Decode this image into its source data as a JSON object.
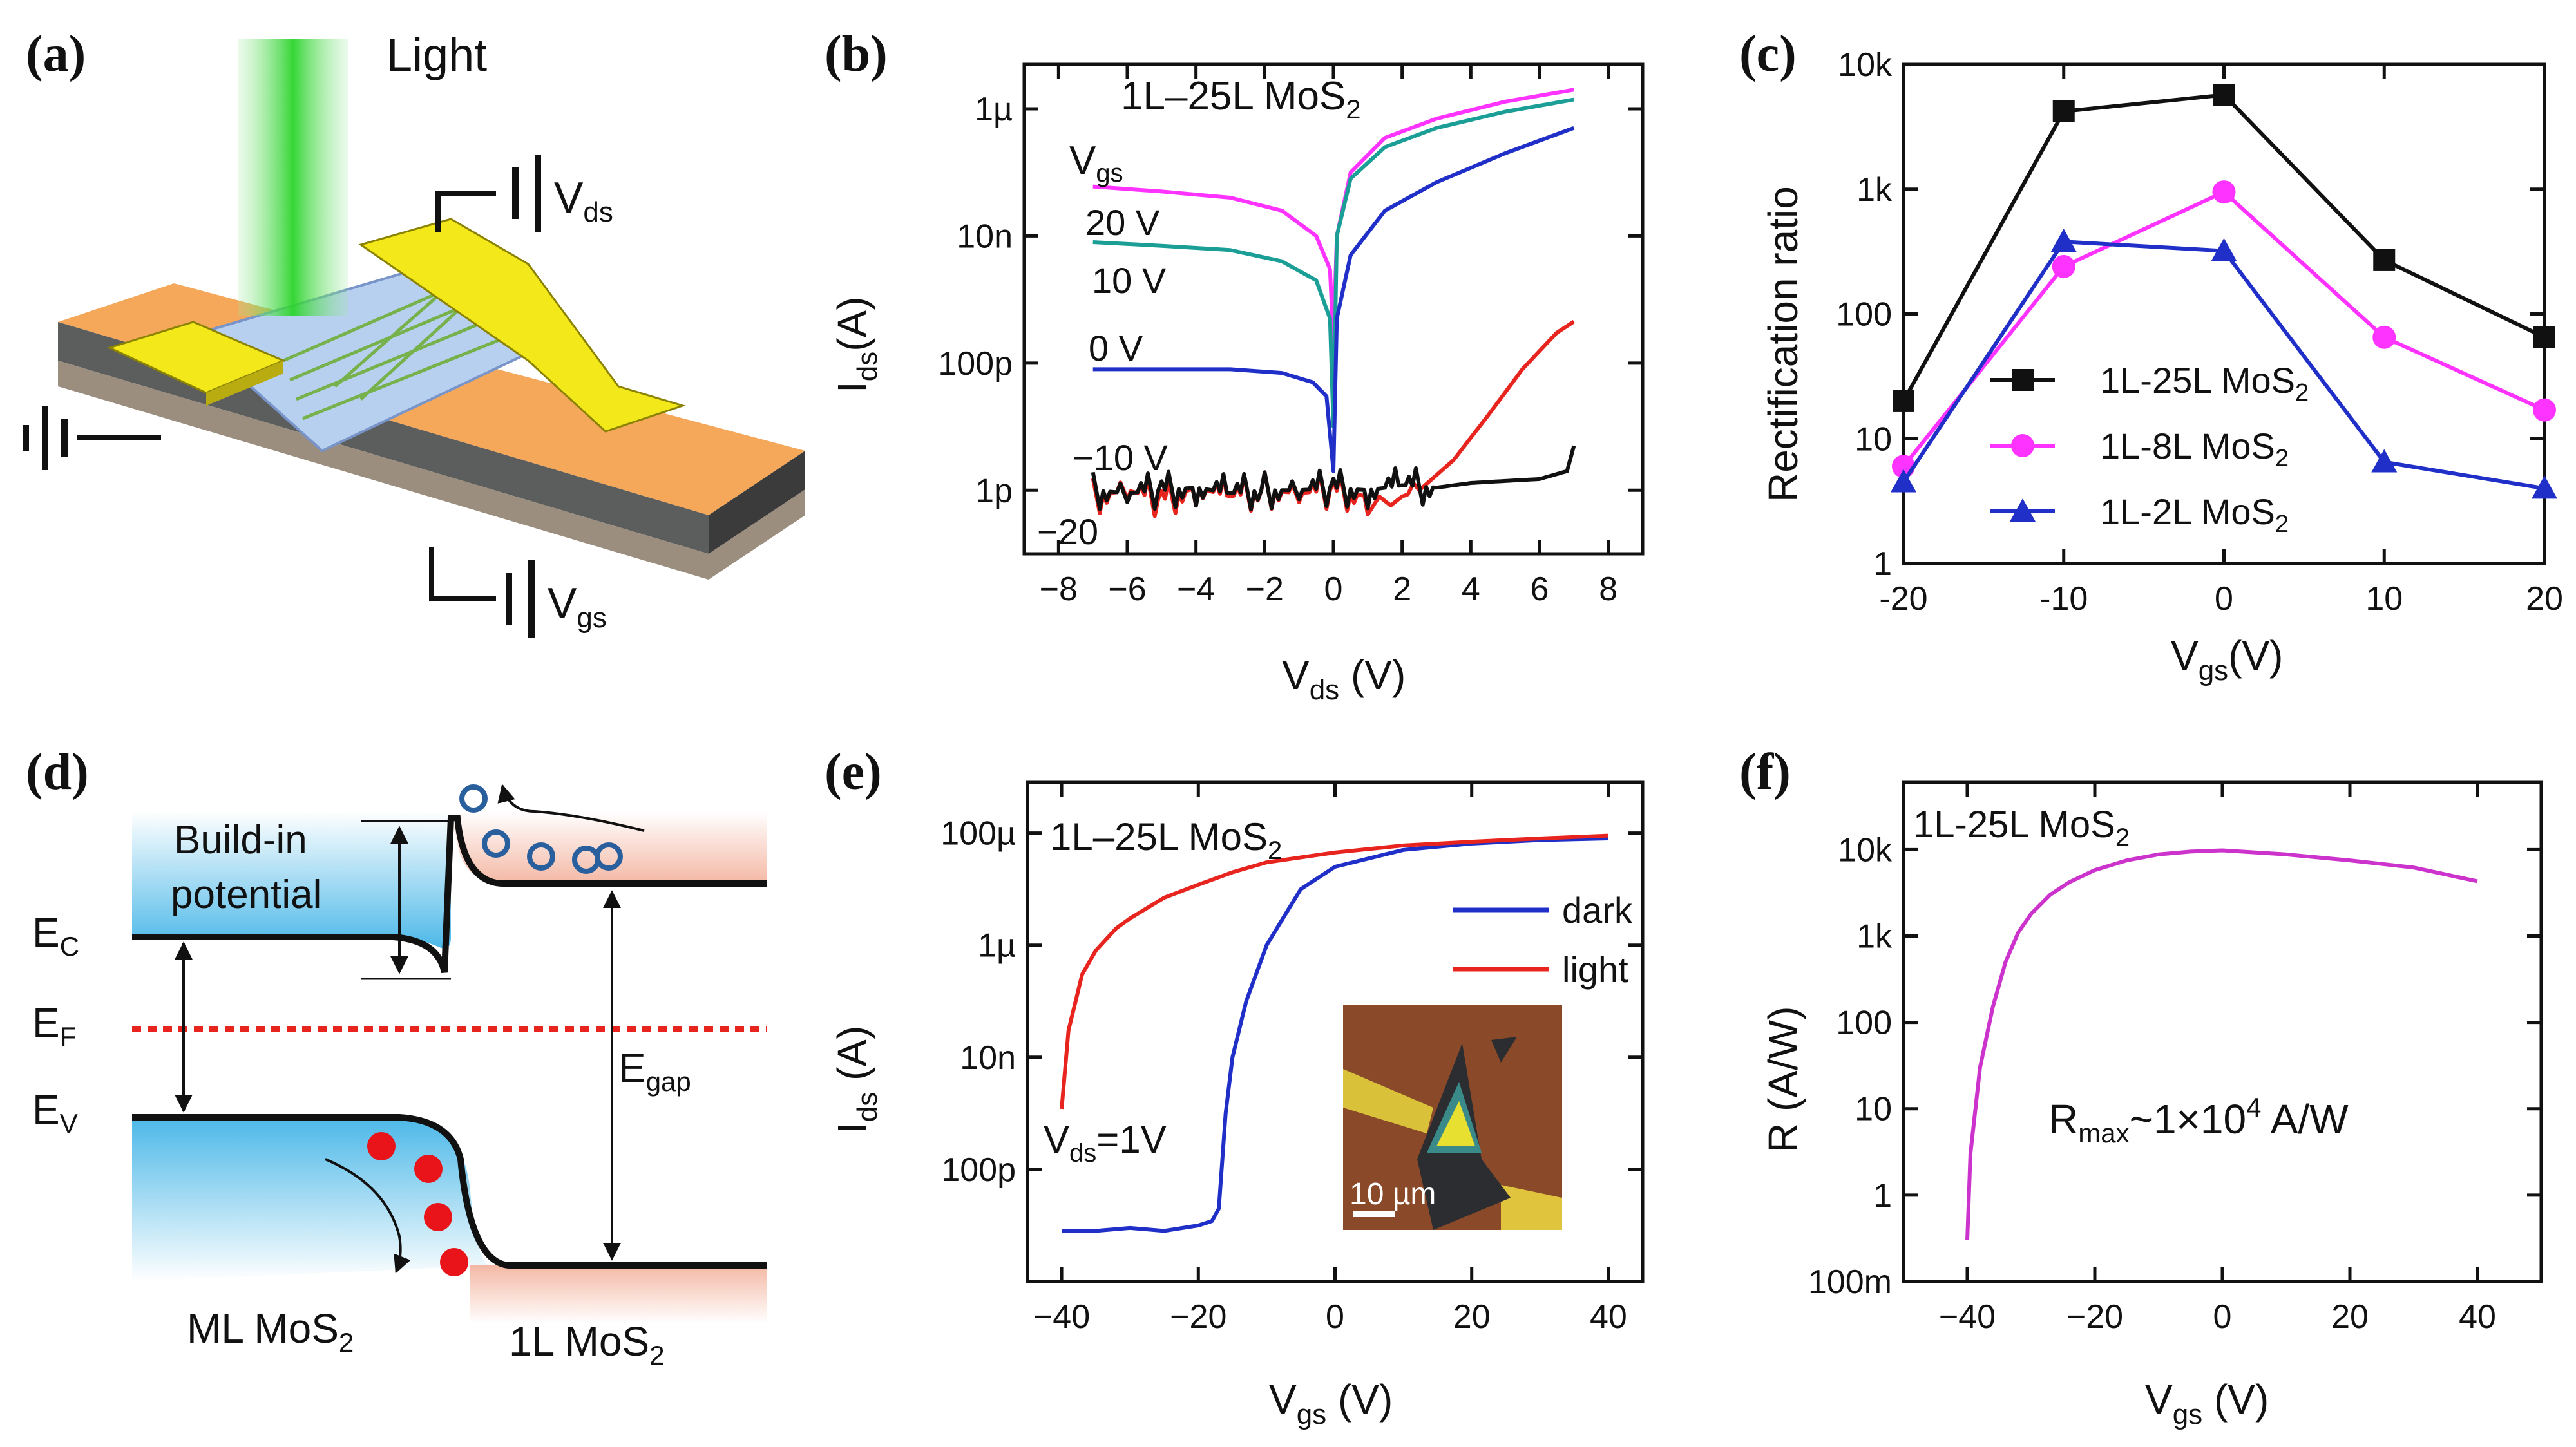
{
  "panels": {
    "a": {
      "label": "(a)",
      "light": "Light",
      "vds": "V",
      "vds_sub": "ds",
      "vgs": "V",
      "vgs_sub": "gs"
    },
    "b": {
      "label": "(b)",
      "title": "1L–25L MoS",
      "title_sub": "2",
      "legend_title": "V",
      "legend_title_sub": "gs",
      "curve_labels": [
        "20 V",
        "10 V",
        "0 V",
        "−10 V",
        "−20"
      ],
      "xlabel": "V",
      "xlabel_sub": "ds",
      "xunit": " (V)",
      "ylabel": "I",
      "ylabel_sub": "ds",
      "yunit": "(A)"
    },
    "c": {
      "label": "(c)",
      "xlabel": "V",
      "xlabel_sub": "gs",
      "xunit": "(V)",
      "ylabel": "Rectification ratio",
      "legend": [
        {
          "text": "1L-25L MoS",
          "sub": "2"
        },
        {
          "text": "1L-8L MoS",
          "sub": "2"
        },
        {
          "text": "1L-2L MoS",
          "sub": "2"
        }
      ]
    },
    "d": {
      "label": "(d)",
      "build_in_1": "Build-in",
      "build_in_2": "potential",
      "ec": "E",
      "ec_sub": "C",
      "ef": "E",
      "ef_sub": "F",
      "ev": "E",
      "ev_sub": "V",
      "egap": "E",
      "egap_sub": "gap",
      "ml": "ML MoS",
      "ml_sub": "2",
      "onel": "1L MoS",
      "onel_sub": "2"
    },
    "e": {
      "label": "(e)",
      "title": "1L–25L MoS",
      "title_sub": "2",
      "legend": [
        {
          "text": "dark",
          "color": "#1f2fc8"
        },
        {
          "text": "light",
          "color": "#e8241f"
        }
      ],
      "vds_note": "V",
      "vds_note_sub": "ds",
      "vds_note_val": "=1V",
      "scale_bar": "10 µm",
      "xlabel": "V",
      "xlabel_sub": "gs",
      "xunit": " (V)",
      "ylabel": "I",
      "ylabel_sub": "ds",
      "yunit": " (A)"
    },
    "f": {
      "label": "(f)",
      "title": "1L-25L MoS",
      "title_sub": "2",
      "rmax": "R",
      "rmax_sub": "max",
      "rmax_val": "~1×10",
      "rmax_sup": "4",
      "rmax_unit": " A/W",
      "xlabel": "V",
      "xlabel_sub": "gs",
      "xunit": " (V)",
      "ylabel": "R (A/W)"
    }
  },
  "chart_data": [
    {
      "id": "b",
      "type": "line",
      "xscale": "linear",
      "yscale": "log",
      "xlim": [
        -9,
        9
      ],
      "ylim": [
        1e-13,
        5e-06
      ],
      "xticks": [
        -8,
        -6,
        -4,
        -2,
        0,
        2,
        4,
        6,
        8
      ],
      "xtick_labels": [
        "−8",
        "−6",
        "−4",
        "−2",
        "0",
        "2",
        "4",
        "6",
        "8"
      ],
      "yticks": [
        1e-12,
        1e-10,
        1e-08,
        1e-06
      ],
      "ytick_labels": [
        "1p",
        "100p",
        "10n",
        "1µ"
      ],
      "series": [
        {
          "name": "20 V",
          "color": "#ff33ff",
          "x": [
            -7,
            -5,
            -3,
            -1.5,
            -0.5,
            -0.1,
            0,
            0.1,
            0.5,
            1.5,
            3,
            5,
            7
          ],
          "y": [
            6e-08,
            5e-08,
            4e-08,
            2.5e-08,
            1e-08,
            3e-09,
            2e-10,
            1e-08,
            1e-07,
            3.5e-07,
            7e-07,
            1.3e-06,
            2e-06
          ]
        },
        {
          "name": "10 V",
          "color": "#1a9e96",
          "x": [
            -7,
            -5,
            -3,
            -1.5,
            -0.5,
            -0.1,
            0,
            0.1,
            0.5,
            1.5,
            3,
            5,
            7
          ],
          "y": [
            8e-09,
            7e-09,
            6e-09,
            4e-09,
            2e-09,
            5e-10,
            1e-11,
            1e-08,
            8e-08,
            2.5e-07,
            5e-07,
            9e-07,
            1.4e-06
          ]
        },
        {
          "name": "0 V",
          "color": "#1f2fc8",
          "x": [
            -7,
            -5,
            -3,
            -1.5,
            -0.6,
            -0.2,
            0,
            0.1,
            0.5,
            1.5,
            3,
            5,
            7
          ],
          "y": [
            8e-11,
            8e-11,
            8e-11,
            7e-11,
            5e-11,
            3e-11,
            2e-12,
            5e-10,
            5e-09,
            2.5e-08,
            7e-08,
            2e-07,
            5e-07
          ]
        },
        {
          "name": "-10 V",
          "color": "#e8241f",
          "x": [
            -7,
            -6,
            -5,
            -4,
            -3,
            -2,
            -1,
            0,
            1,
            2,
            2.5,
            3.5,
            4.5,
            5.5,
            6.5,
            7
          ],
          "y": [
            8e-13,
            1e-12,
            7e-13,
            1.1e-12,
            8e-13,
            1e-12,
            9e-13,
            1e-12,
            8e-13,
            8e-13,
            1e-12,
            3e-12,
            1.5e-11,
            8e-11,
            3e-10,
            4.5e-10
          ]
        },
        {
          "name": "-20 V",
          "color": "#111111",
          "x": [
            -7,
            -6,
            -5,
            -4,
            -3,
            -2,
            -1,
            0,
            1,
            2,
            3,
            4,
            5,
            6,
            6.8,
            7
          ],
          "y": [
            1e-12,
            9e-13,
            1e-12,
            1.1e-12,
            9e-13,
            1e-12,
            1e-12,
            1.1e-12,
            1e-12,
            1.2e-12,
            1.1e-12,
            1.3e-12,
            1.4e-12,
            1.5e-12,
            2e-12,
            5e-12
          ]
        }
      ]
    },
    {
      "id": "c",
      "type": "line",
      "xscale": "linear",
      "yscale": "log",
      "xlim": [
        -20,
        20
      ],
      "ylim": [
        1,
        10000
      ],
      "xticks": [
        -20,
        -10,
        0,
        10,
        20
      ],
      "xtick_labels": [
        "-20",
        "-10",
        "0",
        "10",
        "20"
      ],
      "yticks": [
        1,
        10,
        100,
        1000,
        10000
      ],
      "ytick_labels": [
        "1",
        "10",
        "100",
        "1k",
        "10k"
      ],
      "series": [
        {
          "name": "1L-25L MoS2",
          "color": "#111111",
          "marker": "square",
          "x": [
            -20,
            -10,
            0,
            10,
            20
          ],
          "y": [
            20,
            4200,
            5700,
            270,
            65
          ]
        },
        {
          "name": "1L-8L MoS2",
          "color": "#ff33ff",
          "marker": "circle",
          "x": [
            -20,
            -10,
            0,
            10,
            20
          ],
          "y": [
            6,
            240,
            950,
            65,
            17
          ]
        },
        {
          "name": "1L-2L MoS2",
          "color": "#1f2fc8",
          "marker": "triangle",
          "x": [
            -20,
            -10,
            0,
            10,
            20
          ],
          "y": [
            4.5,
            380,
            320,
            6.5,
            4
          ]
        }
      ]
    },
    {
      "id": "e",
      "type": "line",
      "xscale": "linear",
      "yscale": "log",
      "xlim": [
        -45,
        45
      ],
      "ylim": [
        1e-12,
        0.0008
      ],
      "xticks": [
        -40,
        -20,
        0,
        20,
        40
      ],
      "xtick_labels": [
        "−40",
        "−20",
        "0",
        "20",
        "40"
      ],
      "yticks": [
        1e-10,
        1e-08,
        1e-06,
        0.0001
      ],
      "ytick_labels": [
        "100p",
        "10n",
        "1µ",
        "100µ"
      ],
      "series": [
        {
          "name": "dark",
          "color": "#1f2fc8",
          "x": [
            -40,
            -35,
            -30,
            -25,
            -20,
            -18,
            -17,
            -16,
            -15,
            -13,
            -10,
            -7,
            -5,
            0,
            10,
            20,
            30,
            40
          ],
          "y": [
            8e-12,
            8e-12,
            9e-12,
            8e-12,
            1e-11,
            1.2e-11,
            2e-11,
            1e-09,
            1e-08,
            1e-07,
            1e-06,
            4e-06,
            1e-05,
            2.5e-05,
            5e-05,
            6.5e-05,
            7.5e-05,
            8e-05
          ]
        },
        {
          "name": "light",
          "color": "#e8241f",
          "x": [
            -40,
            -39,
            -37,
            -35,
            -32,
            -30,
            -25,
            -20,
            -15,
            -10,
            0,
            10,
            20,
            30,
            40
          ],
          "y": [
            1.2e-09,
            3e-08,
            3e-07,
            8e-07,
            2e-06,
            3e-06,
            7e-06,
            1.2e-05,
            2e-05,
            3e-05,
            4.5e-05,
            6e-05,
            7e-05,
            8e-05,
            9e-05
          ]
        }
      ]
    },
    {
      "id": "f",
      "type": "line",
      "xscale": "linear",
      "yscale": "log",
      "xlim": [
        -50,
        50
      ],
      "ylim": [
        0.1,
        60000
      ],
      "xticks": [
        -40,
        -20,
        0,
        20,
        40
      ],
      "xtick_labels": [
        "−40",
        "−20",
        "0",
        "20",
        "40"
      ],
      "yticks": [
        0.1,
        1,
        10,
        100,
        1000,
        10000
      ],
      "ytick_labels": [
        "100m",
        "1",
        "10",
        "100",
        "1k",
        "10k"
      ],
      "series": [
        {
          "name": "R",
          "color": "#cc33cc",
          "x": [
            -40,
            -39.5,
            -38,
            -36,
            -34,
            -32,
            -30,
            -27,
            -24,
            -20,
            -15,
            -10,
            -5,
            0,
            10,
            20,
            30,
            40
          ],
          "y": [
            0.3,
            3,
            30,
            150,
            500,
            1100,
            1800,
            3000,
            4200,
            5800,
            7500,
            8800,
            9500,
            9800,
            8800,
            7500,
            6200,
            4300
          ]
        }
      ]
    }
  ]
}
